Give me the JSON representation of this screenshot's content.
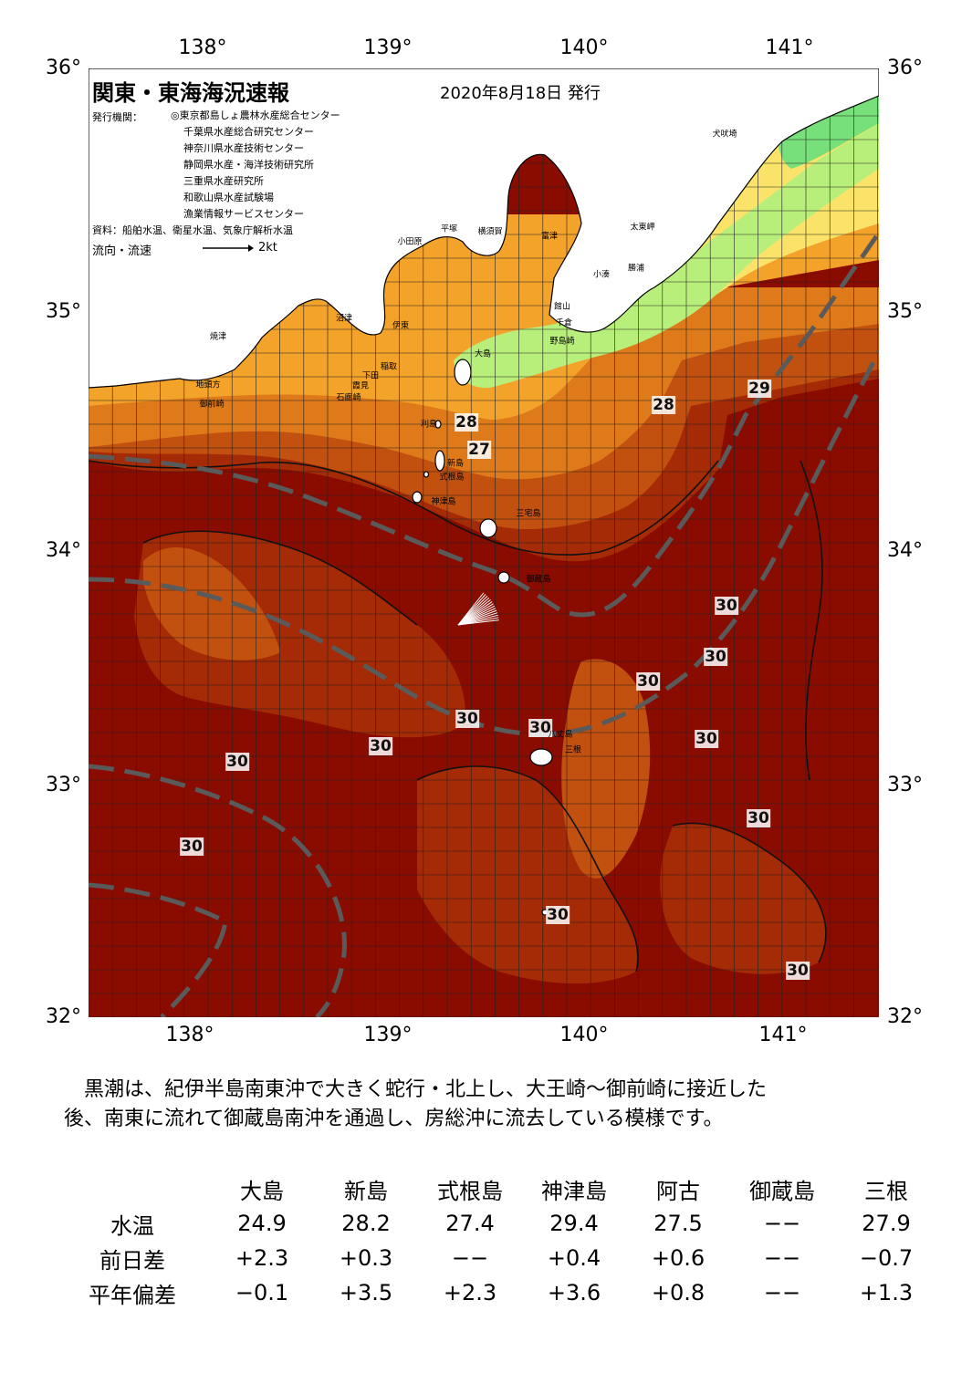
{
  "header": {
    "title": "関東・東海海況速報",
    "date": "2020年8月18日 発行",
    "issuers_label": "発行機関：",
    "issuers": [
      "◎東京都島しょ農林水産総合センター",
      "千葉県水産総合研究センター",
      "神奈川県水産技術センター",
      "静岡県水産・海洋技術研究所",
      "三重県水産研究所",
      "和歌山県水産試験場",
      "漁業情報サービスセンター"
    ],
    "sources": "資料：船舶水温、衛星水温、気象庁解析水温",
    "flow_label": "流向・流速",
    "flow_scale": "2kt"
  },
  "axes": {
    "lon_labels": [
      "138°",
      "139°",
      "140°",
      "141°"
    ],
    "lat_labels": [
      "36°",
      "35°",
      "34°",
      "33°",
      "32°"
    ]
  },
  "map": {
    "colors": {
      "land": "#ffffff",
      "t30": "#8a0c00",
      "t29": "#a52a06",
      "t28": "#c2500f",
      "t27": "#de7a1a",
      "t26": "#f3a32a",
      "t25": "#fbe36a",
      "t24": "#b8ee7a",
      "t23": "#78e07a",
      "kuroshio": "#5a5a5a"
    },
    "isotherm_labels": [
      "28",
      "27",
      "29",
      "28",
      "30",
      "30",
      "30",
      "30",
      "30",
      "30",
      "30",
      "30",
      "30",
      "30",
      "30",
      "30"
    ],
    "places": [
      "小田原",
      "平塚",
      "横須賀",
      "富津",
      "館山",
      "千倉",
      "野島崎",
      "勝浦",
      "小湊",
      "太東岬",
      "犬吠埼",
      "沼津",
      "伊東",
      "稲取",
      "下田",
      "石廊崎",
      "大島",
      "利島",
      "新島",
      "式根島",
      "神津島",
      "三宅島",
      "御蔵島",
      "八丈島",
      "三根",
      "焼津",
      "御前崎",
      "地頭方",
      "霞見"
    ]
  },
  "summary": [
    "黒潮は、紀伊半島南東沖で大きく蛇行・北上し、大王崎～御前崎に接近した",
    "後、南東に流れて御蔵島南沖を通過し、房総沖に流去している模様です。"
  ],
  "table": {
    "columns": [
      "大島",
      "新島",
      "式根島",
      "神津島",
      "阿古",
      "御蔵島",
      "三根"
    ],
    "rows": [
      {
        "label": "水温",
        "values": [
          "24.9",
          "28.2",
          "27.4",
          "29.4",
          "27.5",
          "−−",
          "27.9"
        ]
      },
      {
        "label": "前日差",
        "values": [
          "+2.3",
          "+0.3",
          "−−",
          "+0.4",
          "+0.6",
          "−−",
          "−0.7"
        ]
      },
      {
        "label": "平年偏差",
        "values": [
          "−0.1",
          "+3.5",
          "+2.3",
          "+3.6",
          "+0.8",
          "−−",
          "+1.3"
        ]
      }
    ]
  }
}
